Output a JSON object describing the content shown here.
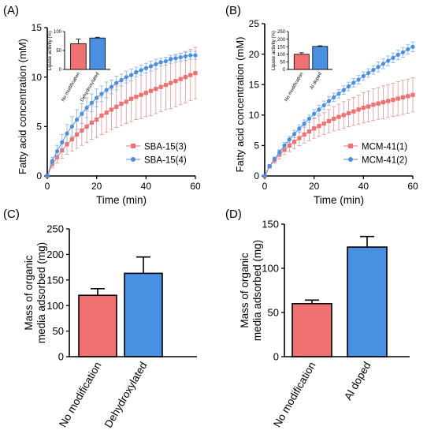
{
  "colors": {
    "series_a": "#f07171",
    "series_a_error": "#e89090",
    "series_b": "#4a90e2",
    "series_b_error": "#7fb0ee",
    "axis": "#000000"
  },
  "chart_data": [
    {
      "panel": "(A)",
      "type": "line",
      "xlabel": "Time (min)",
      "ylabel": "Fatty acid concentration (mM)",
      "xlim": [
        0,
        60
      ],
      "ylim": [
        0,
        15
      ],
      "xticks": [
        "0",
        "20",
        "40",
        "60"
      ],
      "yticks": [
        "0",
        "5",
        "10",
        "15"
      ],
      "legend_position": "bottom-right",
      "x": [
        0,
        2,
        4,
        6,
        8,
        10,
        12,
        14,
        16,
        18,
        20,
        22,
        24,
        26,
        28,
        30,
        32,
        34,
        36,
        38,
        40,
        42,
        44,
        46,
        48,
        50,
        52,
        54,
        56,
        58,
        60
      ],
      "series": [
        {
          "name": "SBA-15(3)",
          "marker": "square",
          "values": [
            0.0,
            1.2,
            1.9,
            2.6,
            3.2,
            3.7,
            4.2,
            4.6,
            5.0,
            5.4,
            5.7,
            6.1,
            6.4,
            6.7,
            7.0,
            7.3,
            7.5,
            7.8,
            8.0,
            8.2,
            8.4,
            8.6,
            8.8,
            9.0,
            9.2,
            9.4,
            9.6,
            9.8,
            10.0,
            10.2,
            10.4
          ],
          "errors": [
            0.0,
            0.4,
            0.6,
            0.8,
            1.0,
            1.2,
            1.4,
            1.5,
            1.6,
            1.7,
            1.8,
            1.9,
            2.0,
            2.0,
            2.1,
            2.2,
            2.2,
            2.3,
            2.3,
            2.4,
            2.4,
            2.5,
            2.5,
            2.5,
            2.5,
            2.6,
            2.6,
            2.6,
            2.6,
            2.6,
            2.6
          ]
        },
        {
          "name": "SBA-15(4)",
          "marker": "circle",
          "values": [
            0.0,
            1.5,
            2.5,
            3.4,
            4.3,
            5.0,
            5.7,
            6.3,
            6.9,
            7.4,
            7.9,
            8.3,
            8.7,
            9.0,
            9.4,
            9.7,
            10.0,
            10.2,
            10.5,
            10.7,
            10.9,
            11.1,
            11.3,
            11.5,
            11.6,
            11.8,
            11.9,
            12.0,
            12.1,
            12.2,
            12.2
          ],
          "errors": [
            0.0,
            0.4,
            0.6,
            0.8,
            0.9,
            1.0,
            1.0,
            1.0,
            1.0,
            0.9,
            0.9,
            0.8,
            0.8,
            0.7,
            0.7,
            0.6,
            0.6,
            0.6,
            0.5,
            0.5,
            0.5,
            0.5,
            0.5,
            0.4,
            0.4,
            0.4,
            0.4,
            0.4,
            0.4,
            0.4,
            0.4
          ]
        }
      ],
      "inset": {
        "type": "bar",
        "ylabel": "Lipase activity (%)",
        "ylim": [
          0,
          100
        ],
        "yticks": [
          "0",
          "50",
          "100"
        ],
        "categories": [
          "No modification",
          "Dehydroxylated"
        ],
        "values": [
          68,
          83
        ],
        "errors": [
          12,
          2
        ]
      }
    },
    {
      "panel": "(B)",
      "type": "line",
      "xlabel": "Time (min)",
      "ylabel": "Fatty acid concentration (mM)",
      "xlim": [
        0,
        60
      ],
      "ylim": [
        0,
        25
      ],
      "xticks": [
        "0",
        "20",
        "40",
        "60"
      ],
      "yticks": [
        "0",
        "5",
        "10",
        "15",
        "20",
        "25"
      ],
      "legend_position": "bottom-right",
      "x": [
        0,
        2,
        4,
        6,
        8,
        10,
        12,
        14,
        16,
        18,
        20,
        22,
        24,
        26,
        28,
        30,
        32,
        34,
        36,
        38,
        40,
        42,
        44,
        46,
        48,
        50,
        52,
        54,
        56,
        58,
        60
      ],
      "series": [
        {
          "name": "MCM-41(1)",
          "marker": "square",
          "values": [
            0.0,
            1.6,
            2.6,
            3.5,
            4.3,
            5.0,
            5.6,
            6.2,
            6.8,
            7.3,
            7.8,
            8.2,
            8.6,
            9.0,
            9.4,
            9.7,
            10.0,
            10.3,
            10.6,
            10.9,
            11.2,
            11.4,
            11.7,
            11.9,
            12.1,
            12.3,
            12.5,
            12.7,
            12.9,
            13.1,
            13.3
          ],
          "errors": [
            0.0,
            0.3,
            0.5,
            0.7,
            0.8,
            1.0,
            1.1,
            1.2,
            1.4,
            1.5,
            1.6,
            1.7,
            1.8,
            1.9,
            2.0,
            2.1,
            2.2,
            2.2,
            2.3,
            2.4,
            2.5,
            2.5,
            2.6,
            2.6,
            2.7,
            2.7,
            2.7,
            2.8,
            2.8,
            2.8,
            2.8
          ]
        },
        {
          "name": "MCM-41(2)",
          "marker": "circle",
          "values": [
            0.0,
            1.6,
            2.8,
            3.9,
            5.0,
            6.0,
            6.9,
            7.8,
            8.6,
            9.4,
            10.2,
            10.9,
            11.6,
            12.3,
            12.9,
            13.5,
            14.1,
            14.7,
            15.3,
            15.8,
            16.4,
            16.9,
            17.4,
            17.9,
            18.4,
            18.9,
            19.4,
            19.9,
            20.3,
            20.8,
            21.2
          ],
          "errors": [
            0.0,
            0.2,
            0.3,
            0.4,
            0.5,
            0.5,
            0.6,
            0.6,
            0.6,
            0.6,
            0.7,
            0.7,
            0.7,
            0.7,
            0.7,
            0.7,
            0.7,
            0.7,
            0.7,
            0.7,
            0.7,
            0.7,
            0.7,
            0.8,
            0.8,
            0.8,
            0.8,
            0.8,
            0.8,
            0.8,
            0.8
          ]
        }
      ],
      "inset": {
        "type": "bar",
        "ylabel": "Lipase activity (%)",
        "ylim": [
          0,
          250
        ],
        "yticks": [
          "0",
          "50",
          "100",
          "150",
          "200",
          "250"
        ],
        "categories": [
          "No modification",
          "Al doped"
        ],
        "values": [
          100,
          152
        ],
        "errors": [
          10,
          4
        ]
      }
    },
    {
      "panel": "(C)",
      "type": "bar",
      "ylabel_lines": [
        "Mass of organic",
        "media adsorbed (mg)"
      ],
      "ylim": [
        0,
        250
      ],
      "yticks": [
        "0",
        "50",
        "100",
        "150",
        "200",
        "250"
      ],
      "categories": [
        "No modification",
        "Dehydroxylated"
      ],
      "values": [
        120,
        163
      ],
      "errors": [
        13,
        32
      ]
    },
    {
      "panel": "(D)",
      "type": "bar",
      "ylabel_lines": [
        "Mass of organic",
        "media adsorbed (mg)"
      ],
      "ylim": [
        0,
        150
      ],
      "yticks": [
        "0",
        "50",
        "100",
        "150"
      ],
      "categories": [
        "No modification",
        "Al doped"
      ],
      "values": [
        60,
        124
      ],
      "errors": [
        4,
        12
      ]
    }
  ]
}
